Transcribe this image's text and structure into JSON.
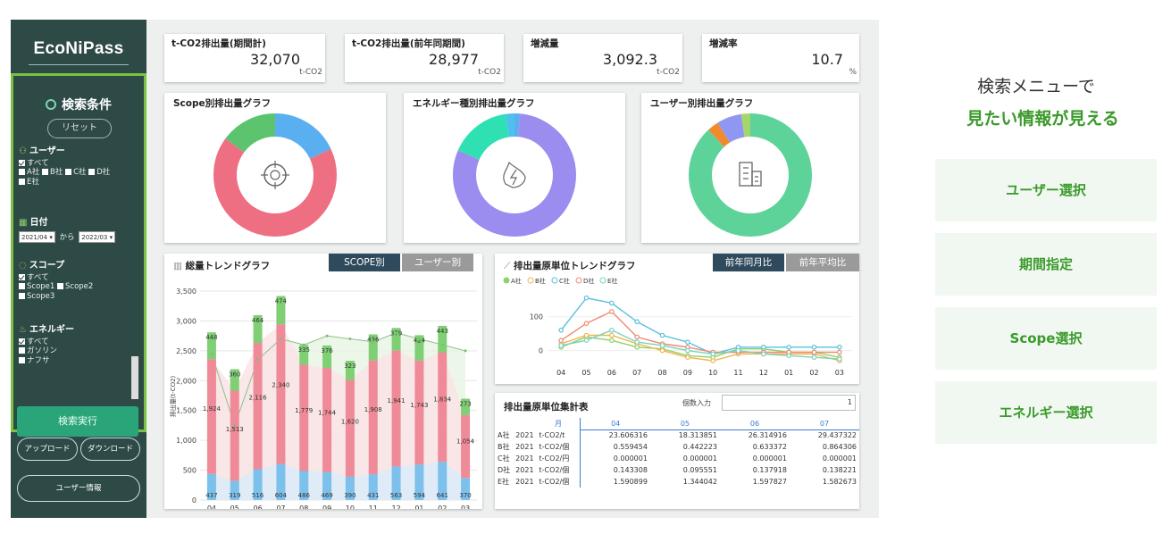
{
  "app": {
    "logo": "EcoNiPass"
  },
  "sidebar": {
    "search_title": "検索条件",
    "reset_label": "リセット",
    "user": {
      "heading": "ユーザー",
      "all": "すべて",
      "options": [
        "A社",
        "B社",
        "C社",
        "D社",
        "E社"
      ]
    },
    "date": {
      "heading": "日付",
      "from": "2021/04",
      "sep": "から",
      "to": "2022/03"
    },
    "scope": {
      "heading": "スコープ",
      "all": "すべて",
      "options": [
        "Scope1",
        "Scope2",
        "Scope3"
      ]
    },
    "energy": {
      "heading": "エネルギー",
      "all": "すべて",
      "options": [
        "ガソリン",
        "ナフサ"
      ]
    },
    "execute_label": "検索実行",
    "upload_label": "アップロード",
    "download_label": "ダウンロード",
    "userinfo_label": "ユーザー情報"
  },
  "kpis": [
    {
      "title": "t-CO2排出量(期間計)",
      "value": "32,070",
      "unit": "t-CO2"
    },
    {
      "title": "t-CO2排出量(前年同期間)",
      "value": "28,977",
      "unit": "t-CO2"
    },
    {
      "title": "増減量",
      "value": "3,092.3",
      "unit": "t-CO2"
    },
    {
      "title": "増減率",
      "value": "10.7",
      "unit": "%"
    }
  ],
  "donuts": [
    {
      "title": "Scope別排出量グラフ",
      "icon": "crosshair-icon",
      "slices": [
        {
          "v": 0.18,
          "c": "#5aaff0"
        },
        {
          "v": 0.67,
          "c": "#ef6f82"
        },
        {
          "v": 0.15,
          "c": "#5cc46e"
        }
      ]
    },
    {
      "title": "エネルギー種別排出量グラフ",
      "icon": "fire-bolt-icon",
      "slices": [
        {
          "v": 0.015,
          "c": "#5aaff0"
        },
        {
          "v": 0.8,
          "c": "#9b8cf0"
        },
        {
          "v": 0.16,
          "c": "#2fe0b2"
        },
        {
          "v": 0.025,
          "c": "#4fc0ee"
        }
      ]
    },
    {
      "title": "ユーザー別排出量グラフ",
      "icon": "building-icon",
      "slices": [
        {
          "v": 0.88,
          "c": "#5dd39a"
        },
        {
          "v": 0.03,
          "c": "#f08a2c"
        },
        {
          "v": 0.065,
          "c": "#8f97f2"
        },
        {
          "v": 0.025,
          "c": "#a5d66b"
        }
      ]
    }
  ],
  "trend": {
    "title": "総量トレンドグラフ",
    "tabs": [
      "SCOPE別",
      "ユーザー別"
    ],
    "ylabel": "排出量(t-CO2)"
  },
  "unit_trend": {
    "title": "排出量原単位トレンドグラフ",
    "tabs": [
      "前年同月比",
      "前年平均比"
    ],
    "ylabel": "前年同月比",
    "legend": [
      "A社",
      "B社",
      "C社",
      "D社",
      "E社"
    ]
  },
  "summary": {
    "title": "排出量原単位集計表",
    "count_label": "個数入力",
    "count_value": "1",
    "month_header": "月",
    "months": [
      "04",
      "05",
      "06",
      "07"
    ],
    "rows": [
      {
        "co": "A社",
        "yr": "2021",
        "unit": "t-CO2/t",
        "vals": [
          "23.606316",
          "18.313851",
          "26.314916",
          "29.437322"
        ]
      },
      {
        "co": "B社",
        "yr": "2021",
        "unit": "t-CO2/個",
        "vals": [
          "0.559454",
          "0.442223",
          "0.633372",
          "0.864306"
        ]
      },
      {
        "co": "C社",
        "yr": "2021",
        "unit": "t-CO2/円",
        "vals": [
          "0.000001",
          "0.000001",
          "0.000001",
          "0.000001"
        ]
      },
      {
        "co": "D社",
        "yr": "2021",
        "unit": "t-CO2/個",
        "vals": [
          "0.143308",
          "0.095551",
          "0.137918",
          "0.138221"
        ]
      },
      {
        "co": "E社",
        "yr": "2021",
        "unit": "t-CO2/個",
        "vals": [
          "1.590899",
          "1.344042",
          "1.597827",
          "1.582673"
        ]
      }
    ]
  },
  "right_panel": {
    "line1": "検索メニューで",
    "line2": "見たい情報が見える",
    "buttons": [
      "ユーザー選択",
      "期間指定",
      "Scope選択",
      "エネルギー選択"
    ]
  },
  "chart_data": [
    {
      "type": "bar",
      "title": "総量トレンドグラフ",
      "ylabel": "排出量(t-CO2)",
      "categories": [
        "04",
        "05",
        "06",
        "07",
        "08",
        "09",
        "10",
        "11",
        "12",
        "01",
        "02",
        "03"
      ],
      "ylim": [
        0,
        3500
      ],
      "yticks": [
        0,
        500,
        1000,
        1500,
        2000,
        2500,
        3000,
        3500
      ],
      "series": [
        {
          "values": [
            437,
            319,
            516,
            604,
            486,
            469,
            390,
            431,
            563,
            594,
            641,
            370
          ],
          "color": "#7cc0ec"
        },
        {
          "values": [
            1924,
            1513,
            2116,
            2340,
            1779,
            1744,
            1620,
            1908,
            1941,
            1743,
            1834,
            1054
          ],
          "color": "#ef8a98"
        },
        {
          "values": [
            448,
            360,
            464,
            474,
            335,
            376,
            323,
            436,
            379,
            424,
            443,
            273
          ],
          "color": "#7fcf74"
        }
      ],
      "line_values": [
        2450,
        1250,
        2350,
        2700,
        2600,
        2750,
        2700,
        2650,
        2800,
        2700,
        2600,
        2500
      ]
    },
    {
      "type": "line",
      "title": "排出量原単位トレンドグラフ",
      "categories": [
        "04",
        "05",
        "06",
        "07",
        "08",
        "09",
        "10",
        "11",
        "12",
        "01",
        "02",
        "03"
      ],
      "ylim": [
        -30,
        170
      ],
      "yticks": [
        0,
        100
      ],
      "series": [
        {
          "name": "A社",
          "color": "#8fd16a",
          "values": [
            10,
            40,
            30,
            10,
            5,
            -15,
            -20,
            5,
            5,
            -5,
            -5,
            -20
          ]
        },
        {
          "name": "B社",
          "color": "#f2b54c",
          "values": [
            20,
            45,
            45,
            20,
            0,
            -20,
            -30,
            -10,
            -10,
            -10,
            -10,
            -30
          ]
        },
        {
          "name": "C社",
          "color": "#5bc0de",
          "values": [
            60,
            155,
            140,
            85,
            45,
            25,
            -10,
            10,
            10,
            10,
            10,
            10
          ]
        },
        {
          "name": "D社",
          "color": "#ef8a70",
          "values": [
            30,
            80,
            115,
            40,
            20,
            10,
            -5,
            -5,
            -5,
            -5,
            -5,
            -5
          ]
        },
        {
          "name": "E社",
          "color": "#7ad2c0",
          "values": [
            15,
            30,
            60,
            25,
            15,
            0,
            -10,
            0,
            -10,
            -15,
            -20,
            -25
          ]
        }
      ]
    }
  ]
}
